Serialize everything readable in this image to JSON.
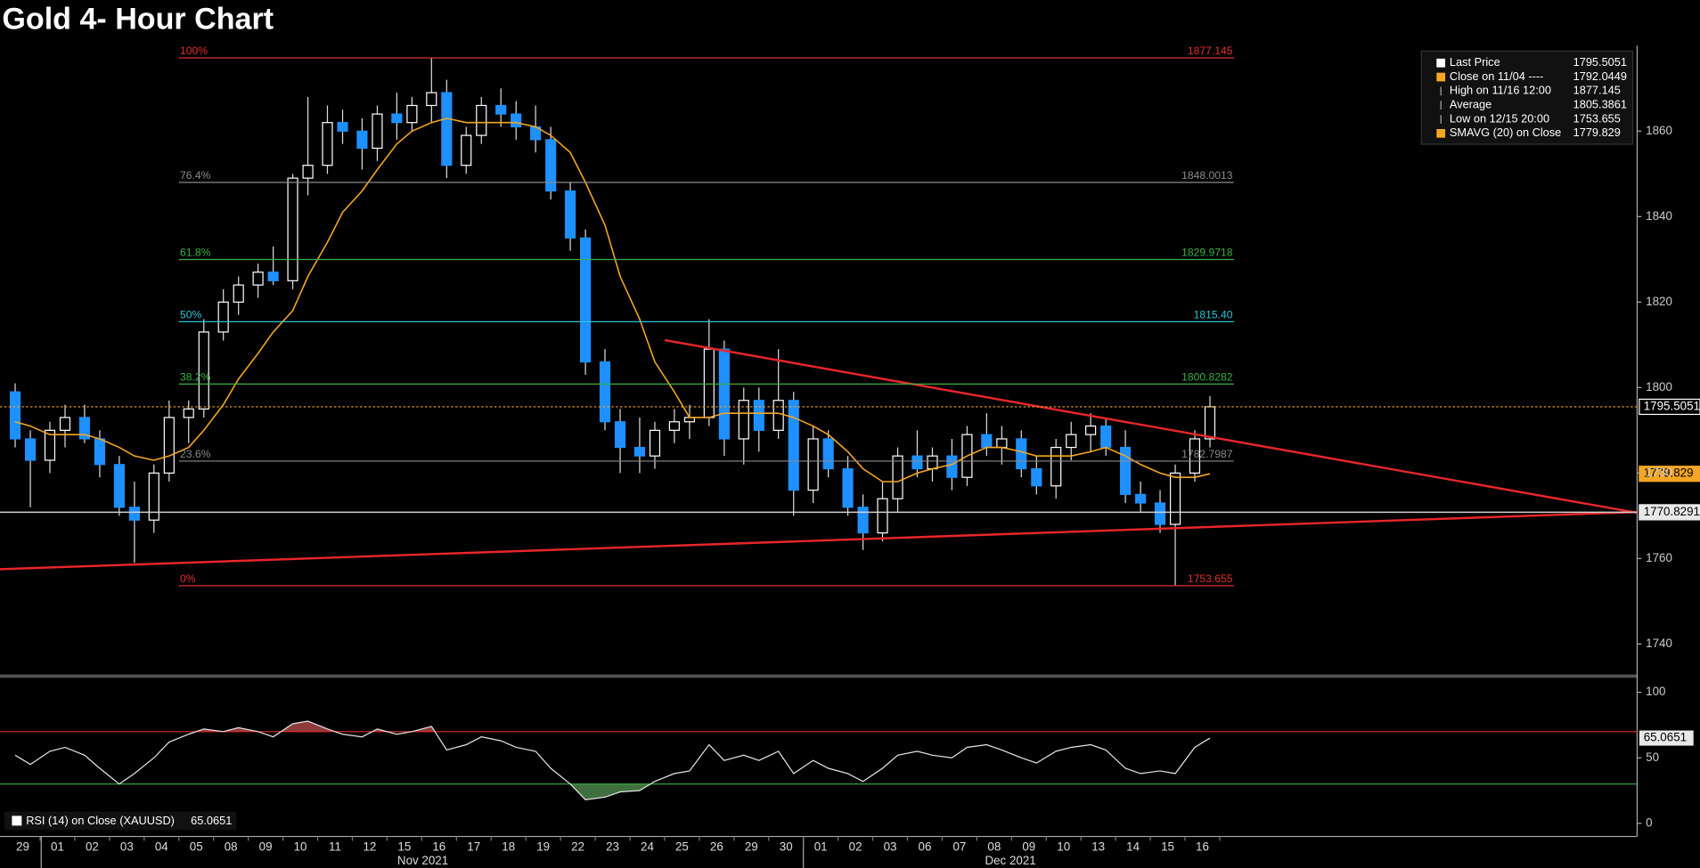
{
  "chart_data": {
    "type": "candlestick",
    "title": "Gold 4- Hour Chart",
    "categories": [
      "29",
      "01",
      "02",
      "03",
      "04",
      "05",
      "08",
      "09",
      "10",
      "11",
      "12",
      "15",
      "16",
      "17",
      "18",
      "19",
      "22",
      "23",
      "24",
      "25",
      "26",
      "29",
      "30",
      "01",
      "02",
      "03",
      "06",
      "07",
      "08",
      "09",
      "10",
      "13",
      "14",
      "15",
      "16"
    ],
    "months": [
      "Nov 2021",
      "Dec 2021"
    ],
    "ylim": [
      1733,
      1880
    ],
    "yticks": [
      1740,
      1760,
      1780,
      1800,
      1820,
      1840,
      1860
    ],
    "candles": [
      [
        1799,
        1801,
        1786,
        1788
      ],
      [
        1788,
        1790,
        1772,
        1783
      ],
      [
        1783,
        1792,
        1780,
        1790
      ],
      [
        1790,
        1796,
        1786,
        1793
      ],
      [
        1793,
        1796,
        1787,
        1788
      ],
      [
        1788,
        1790,
        1779,
        1782
      ],
      [
        1782,
        1784,
        1770,
        1772
      ],
      [
        1772,
        1778,
        1759,
        1769
      ],
      [
        1769,
        1782,
        1766,
        1780
      ],
      [
        1780,
        1797,
        1778,
        1793
      ],
      [
        1793,
        1797,
        1787,
        1795
      ],
      [
        1795,
        1816,
        1793,
        1813
      ],
      [
        1813,
        1823,
        1811,
        1820
      ],
      [
        1820,
        1826,
        1817,
        1824
      ],
      [
        1824,
        1829,
        1821,
        1827
      ],
      [
        1827,
        1833,
        1824,
        1825
      ],
      [
        1825,
        1850,
        1823,
        1849
      ],
      [
        1849,
        1868,
        1845,
        1852
      ],
      [
        1852,
        1866,
        1850,
        1862
      ],
      [
        1862,
        1865,
        1857,
        1860
      ],
      [
        1860,
        1863,
        1851,
        1856
      ],
      [
        1856,
        1866,
        1853,
        1864
      ],
      [
        1864,
        1869,
        1858,
        1862
      ],
      [
        1862,
        1868,
        1860,
        1866
      ],
      [
        1866,
        1877.145,
        1862,
        1869
      ],
      [
        1869,
        1872,
        1849,
        1852
      ],
      [
        1852,
        1861,
        1850,
        1859
      ],
      [
        1859,
        1868,
        1857,
        1866
      ],
      [
        1866,
        1870,
        1861,
        1864
      ],
      [
        1864,
        1867,
        1858,
        1861
      ],
      [
        1861,
        1866,
        1855,
        1858
      ],
      [
        1858,
        1861,
        1844,
        1846
      ],
      [
        1846,
        1848,
        1832,
        1835
      ],
      [
        1835,
        1837,
        1803,
        1806
      ],
      [
        1806,
        1809,
        1790,
        1792
      ],
      [
        1792,
        1795,
        1780,
        1786
      ],
      [
        1786,
        1793,
        1780,
        1784
      ],
      [
        1784,
        1792,
        1781,
        1790
      ],
      [
        1790,
        1795,
        1787,
        1792
      ],
      [
        1792,
        1796,
        1788,
        1793
      ],
      [
        1793,
        1816,
        1791,
        1809
      ],
      [
        1809,
        1811,
        1784,
        1788
      ],
      [
        1788,
        1800,
        1782,
        1797
      ],
      [
        1797,
        1800,
        1785,
        1790
      ],
      [
        1790,
        1809,
        1788,
        1797
      ],
      [
        1797,
        1799,
        1770,
        1776
      ],
      [
        1776,
        1791,
        1773,
        1788
      ],
      [
        1788,
        1790,
        1779,
        1781
      ],
      [
        1781,
        1784,
        1770,
        1772
      ],
      [
        1772,
        1775,
        1762,
        1766
      ],
      [
        1766,
        1778,
        1764,
        1774
      ],
      [
        1774,
        1786,
        1771,
        1784
      ],
      [
        1784,
        1790,
        1779,
        1781
      ],
      [
        1781,
        1786,
        1778,
        1784
      ],
      [
        1784,
        1788,
        1776,
        1779
      ],
      [
        1779,
        1791,
        1777,
        1789
      ],
      [
        1789,
        1794,
        1784,
        1786
      ],
      [
        1786,
        1791,
        1782,
        1788
      ],
      [
        1788,
        1790,
        1779,
        1781
      ],
      [
        1781,
        1784,
        1775,
        1777
      ],
      [
        1777,
        1788,
        1774,
        1786
      ],
      [
        1786,
        1792,
        1783,
        1789
      ],
      [
        1789,
        1794,
        1785,
        1791
      ],
      [
        1791,
        1793,
        1784,
        1786
      ],
      [
        1786,
        1790,
        1773,
        1775
      ],
      [
        1775,
        1778,
        1771,
        1773
      ],
      [
        1773,
        1776,
        1766,
        1768
      ],
      [
        1768,
        1782,
        1753.655,
        1780
      ],
      [
        1780,
        1790,
        1778,
        1788
      ],
      [
        1788,
        1798,
        1786,
        1795.5051
      ]
    ],
    "candle_colors": {
      "up": "#ffffff",
      "down": "#1e90ff"
    },
    "sma": {
      "name": "SMAVG (20)  on Close",
      "color": "#f5a623",
      "values": [
        1792,
        1791,
        1789,
        1789,
        1789,
        1788,
        1786,
        1784,
        1783,
        1784,
        1786,
        1790,
        1796,
        1802,
        1808,
        1813,
        1818,
        1826,
        1834,
        1841,
        1846,
        1851,
        1857,
        1860,
        1862,
        1863,
        1862,
        1862,
        1862,
        1862,
        1861,
        1859,
        1855,
        1848,
        1838,
        1826,
        1816,
        1806,
        1799,
        1793,
        1793,
        1794,
        1794,
        1794,
        1794,
        1793,
        1791,
        1789,
        1785,
        1781,
        1778,
        1778,
        1780,
        1781,
        1782,
        1784,
        1786,
        1786,
        1785,
        1784,
        1784,
        1784,
        1785,
        1786,
        1784,
        1782,
        1780,
        1779,
        1779,
        1779.829
      ]
    },
    "fib_levels": [
      {
        "label": "100%",
        "value": 1877.145,
        "color": "#e0302a"
      },
      {
        "label": "76.4%",
        "value": 1848.0013,
        "color": "#8a8a8a"
      },
      {
        "label": "61.8%",
        "value": 1829.9718,
        "color": "#3cb043"
      },
      {
        "label": "50%",
        "value": 1815.4,
        "value_label": "1815.40",
        "color": "#2ec4d6"
      },
      {
        "label": "38.2%",
        "value": 1800.8282,
        "color": "#3cb043"
      },
      {
        "label": "23.6%",
        "value": 1782.7987,
        "color": "#8a8a8a"
      },
      {
        "label": "0%",
        "value": 1753.655,
        "color": "#e0302a"
      }
    ],
    "trendlines": [
      {
        "color": "#e8262a",
        "x": [
          18.5,
          48.34
        ],
        "y": [
          1811.1,
          1768.1
        ]
      },
      {
        "color": "#e8262a",
        "x": [
          -0.66,
          48.34
        ],
        "y": [
          1757.5,
          1771.4
        ]
      }
    ],
    "last_price": {
      "value": 1795.5051,
      "color": "#f5a623"
    },
    "level_line": {
      "value": 1770.8291,
      "color": "#d0d0d0"
    },
    "legend": [
      {
        "label": "Last Price",
        "value": 1795.5051,
        "color": "#ffffff"
      },
      {
        "label": "Close on 11/04 ----",
        "value": 1792.0449,
        "color": "#f5a623"
      },
      {
        "label": "High on 11/16 12:00",
        "value": 1877.145,
        "color": null
      },
      {
        "label": "Average",
        "value": 1805.3861,
        "color": null
      },
      {
        "label": "Low on 12/15 20:00",
        "value": 1753.655,
        "color": null
      },
      {
        "label": "SMAVG (20)  on Close",
        "value": 1779.829,
        "color": "#f5a623"
      }
    ],
    "rsi": {
      "name": "RSI (14)  on Close (XAUUSD)",
      "color": "#e6e6e6",
      "ylim": [
        -10,
        114
      ],
      "yticks": [
        0,
        50,
        100
      ],
      "levels": [
        30,
        70
      ],
      "level_colors": [
        "#3cb043",
        "#e0302a"
      ],
      "values": [
        52,
        45,
        55,
        58,
        52,
        42,
        30,
        38,
        50,
        62,
        68,
        72,
        70,
        73,
        70,
        66,
        76,
        78,
        72,
        68,
        66,
        72,
        68,
        70,
        74,
        56,
        60,
        66,
        63,
        58,
        55,
        42,
        30,
        18,
        20,
        24,
        25,
        32,
        38,
        40,
        60,
        48,
        52,
        48,
        55,
        38,
        48,
        42,
        38,
        32,
        42,
        52,
        55,
        52,
        50,
        58,
        60,
        56,
        50,
        46,
        55,
        58,
        60,
        56,
        42,
        38,
        40,
        38,
        58,
        65.0651
      ]
    }
  }
}
